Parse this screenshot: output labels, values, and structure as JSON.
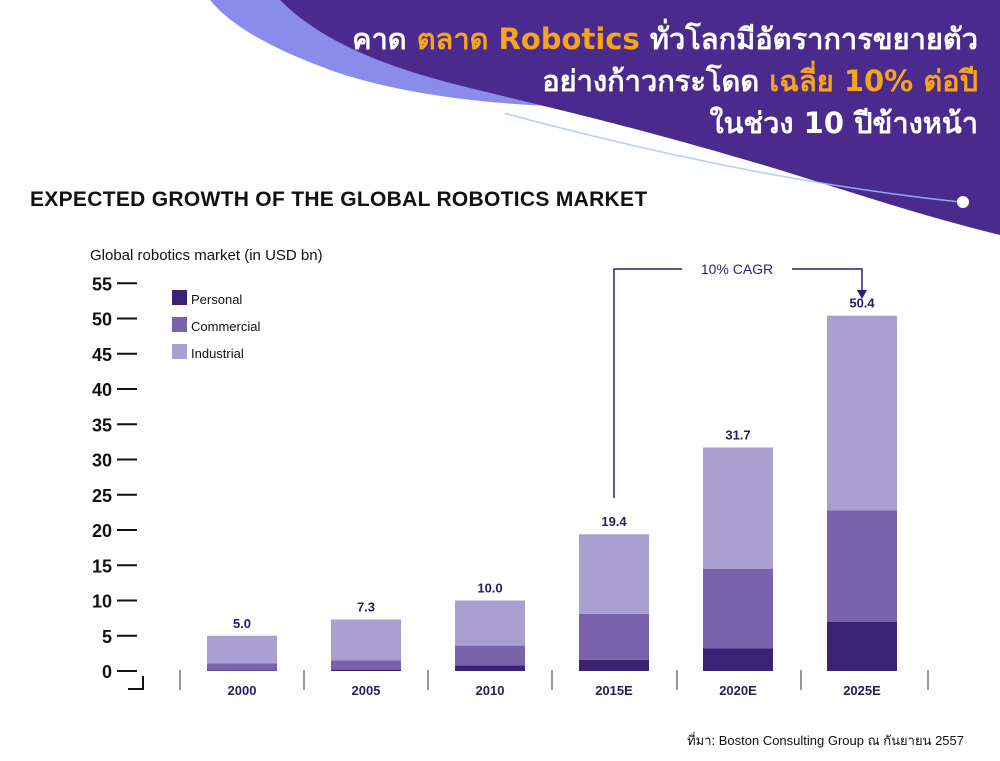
{
  "header": {
    "line1_pre": "คาด ",
    "line1_hl1": "ตลาด Robotics",
    "line1_post": " ทั่วโลกมีอัตราการขยายตัว",
    "line2_pre": "อย่างก้าวกระโดด ",
    "line2_hl": "เฉลี่ย 10% ต่อปี",
    "line3": "ในช่วง 10 ปีข้างหน้า"
  },
  "source": {
    "prefix": "ที่มา: ",
    "brand": "Boston Consulting Group",
    "suffix": " ณ กันยายน 2557"
  },
  "colors": {
    "banner": "#4a2a8c",
    "banner_light": "#8a8cec",
    "personal": "#3b2273",
    "commercial": "#7a62ad",
    "industrial": "#aaa0d0",
    "label": "#2b1a66"
  },
  "chart_data": {
    "type": "bar",
    "stacked": true,
    "title": "EXPECTED GROWTH OF THE GLOBAL ROBOTICS MARKET",
    "ylabel": "Global robotics market (in USD bn)",
    "xlabel": "",
    "ylim": [
      0,
      55
    ],
    "yticks": [
      0,
      5,
      10,
      15,
      20,
      25,
      30,
      35,
      40,
      45,
      50,
      55
    ],
    "categories": [
      "2000",
      "2005",
      "2010",
      "2015E",
      "2020E",
      "2025E"
    ],
    "series": [
      {
        "name": "Personal",
        "values": [
          0.1,
          0.2,
          0.8,
          1.6,
          3.2,
          7.0
        ]
      },
      {
        "name": "Commercial",
        "values": [
          1.0,
          1.3,
          2.8,
          6.5,
          11.3,
          15.8
        ]
      },
      {
        "name": "Industrial",
        "values": [
          3.9,
          5.8,
          6.4,
          11.3,
          17.2,
          27.6
        ]
      }
    ],
    "totals": [
      "5.0",
      "7.3",
      "10.0",
      "19.4",
      "31.7",
      "50.4"
    ],
    "annotation": {
      "text": "10% CAGR",
      "from": "2015E",
      "to": "2025E"
    },
    "legend_position": "top-left",
    "grid": false
  }
}
